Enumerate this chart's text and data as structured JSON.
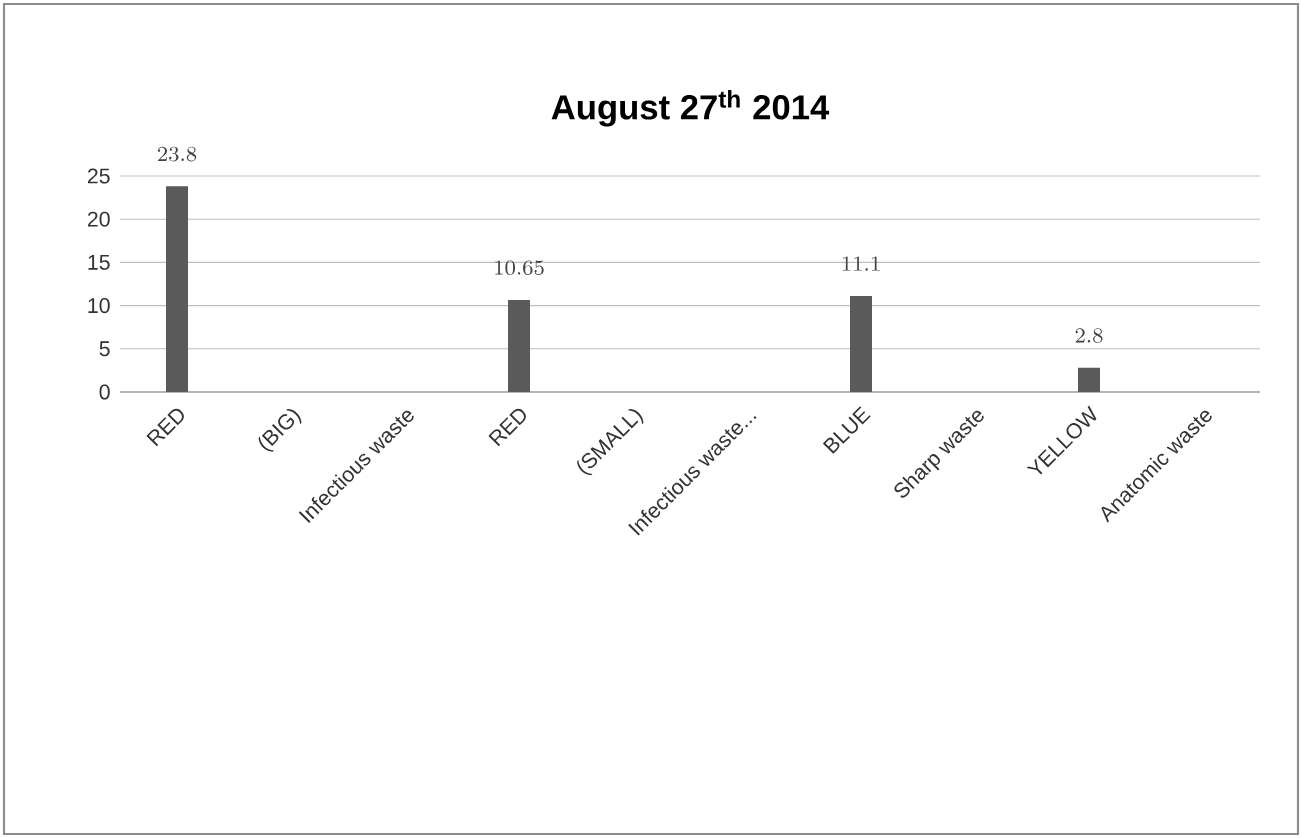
{
  "chart_data": {
    "type": "bar",
    "title": "August 27$^{th}$ 2014",
    "categories": [
      "RED",
      "(BIG)",
      "Infectious waste",
      "RED",
      "(SMALL)",
      "Infectious waste...",
      "BLUE",
      "Sharp waste",
      "YELLOW",
      "Anatomic waste"
    ],
    "values": [
      23.8,
      null,
      null,
      10.65,
      null,
      null,
      11.1,
      null,
      2.8,
      null
    ],
    "color": "#5a5a5a",
    "ylim": [
      0,
      25
    ],
    "yticks": [
      0,
      5,
      10,
      15,
      20,
      25
    ],
    "grid": "y",
    "data_labels": true
  }
}
